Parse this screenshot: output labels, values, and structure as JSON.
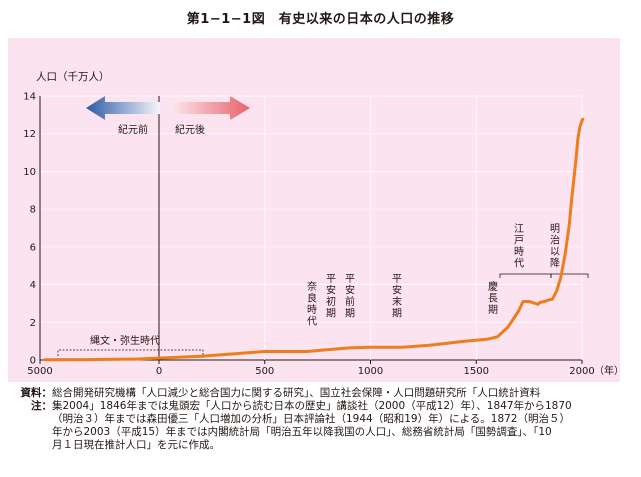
{
  "title": "第1−1−1図　有史以来の日本の人口の推移",
  "chart_data": {
    "type": "line",
    "ylabel": "人口（千万人）",
    "xlabel": "（年）",
    "xlim": [
      -5000,
      2000
    ],
    "ylim": [
      0,
      14
    ],
    "x_ticks": [
      "5000",
      "0",
      "500",
      "1000",
      "1500",
      "2000"
    ],
    "y_ticks": [
      "0",
      "2",
      "4",
      "6",
      "8",
      "10",
      "12",
      "14"
    ],
    "x_scale": "紀元前 / 紀元後（紀元前は圧縮表示）",
    "arrows": {
      "bc": "紀元前",
      "ad": "紀元後"
    },
    "series": [
      {
        "color": "#ee7d1c",
        "x": [
          -4800,
          -3000,
          -1000,
          200,
          500,
          700,
          800,
          900,
          1000,
          1150,
          1280,
          1450,
          1550,
          1600,
          1650,
          1700,
          1721,
          1750,
          1780,
          1792,
          1800,
          1822,
          1846,
          1860,
          1872,
          1880,
          1900,
          1920,
          1940,
          1950,
          1960,
          1970,
          1980,
          1990,
          2000,
          2004
        ],
        "y": [
          0.01,
          0.02,
          0.05,
          0.2,
          0.45,
          0.45,
          0.55,
          0.64,
          0.68,
          0.68,
          0.78,
          1.0,
          1.1,
          1.23,
          1.75,
          2.6,
          3.1,
          3.1,
          3.0,
          2.95,
          3.05,
          3.1,
          3.2,
          3.23,
          3.48,
          3.66,
          4.38,
          5.6,
          7.19,
          8.39,
          9.43,
          10.47,
          11.71,
          12.36,
          12.69,
          12.77
        ]
      }
    ],
    "period_labels": [
      {
        "text": "縄文・弥生時代",
        "x": -2300
      },
      {
        "text": "奈良時代",
        "x": 740
      },
      {
        "text": "平安初期",
        "x": 800
      },
      {
        "text": "平安前期",
        "x": 900
      },
      {
        "text": "平安末期",
        "x": 1150
      },
      {
        "text": "慶長期",
        "x": 1600
      },
      {
        "text": "江戸時代",
        "x": 1720
      },
      {
        "text": "明治以降",
        "x": 1900
      }
    ]
  },
  "notes": [
    {
      "key": "資料：",
      "lines": [
        "総合開発研究機構「人口減少と総合国力に関する研究」、国立社会保障・人口問題研究所「人口統計資料"
      ]
    },
    {
      "key": "注：",
      "lines": [
        "集2004」1846年までは鬼頭宏「人口から読む日本の歴史」講談社（2000（平成12）年）、1847年から1870",
        "（明治３）年までは森田優三「人口増加の分析」日本評論社（1944（昭和19）年）による。1872（明治５）",
        "年から2003（平成15）年までは内閣統計局「明治五年以降我国の人口」、総務省統計局「国勢調査」、「10",
        "月１日現在推計人口」を元に作成。"
      ]
    }
  ]
}
